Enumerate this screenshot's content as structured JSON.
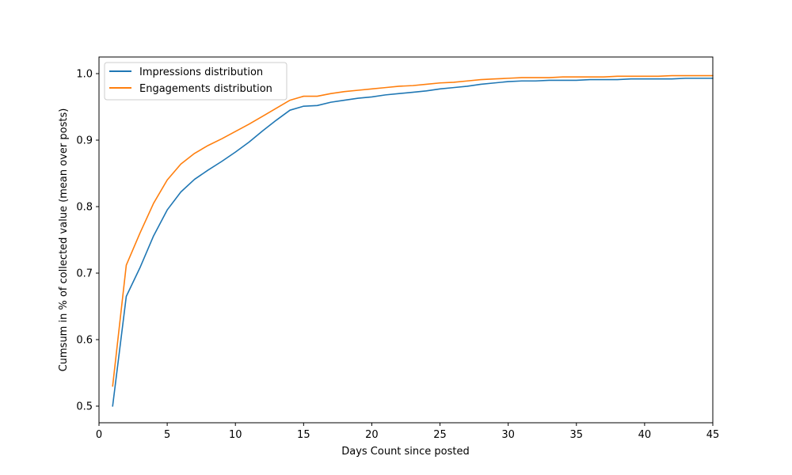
{
  "chart_data": {
    "type": "line",
    "title": "",
    "xlabel": "Days Count since posted",
    "ylabel": "Cumsum in % of collected value (mean over posts)",
    "xlim": [
      0,
      45
    ],
    "ylim": [
      0.475,
      1.025
    ],
    "xticks": [
      0,
      5,
      10,
      15,
      20,
      25,
      30,
      35,
      40,
      45
    ],
    "yticks": [
      0.5,
      0.6,
      0.7,
      0.8,
      0.9,
      1.0
    ],
    "xtick_labels": [
      "0",
      "5",
      "10",
      "15",
      "20",
      "25",
      "30",
      "35",
      "40",
      "45"
    ],
    "ytick_labels": [
      "0.5",
      "0.6",
      "0.7",
      "0.8",
      "0.9",
      "1.0"
    ],
    "grid": false,
    "legend_position": "upper-left",
    "x": [
      1,
      2,
      3,
      4,
      5,
      6,
      7,
      8,
      9,
      10,
      11,
      12,
      13,
      14,
      15,
      16,
      17,
      18,
      19,
      20,
      21,
      22,
      23,
      24,
      25,
      26,
      27,
      28,
      29,
      30,
      31,
      32,
      33,
      34,
      35,
      36,
      37,
      38,
      39,
      40,
      41,
      42,
      43,
      44,
      45
    ],
    "series": [
      {
        "name": "Impressions distribution",
        "color": "#1f77b4",
        "values": [
          0.5,
          0.665,
          0.708,
          0.756,
          0.795,
          0.822,
          0.841,
          0.855,
          0.868,
          0.882,
          0.897,
          0.914,
          0.93,
          0.945,
          0.951,
          0.952,
          0.957,
          0.96,
          0.963,
          0.965,
          0.968,
          0.97,
          0.972,
          0.974,
          0.977,
          0.979,
          0.981,
          0.984,
          0.986,
          0.988,
          0.989,
          0.989,
          0.99,
          0.99,
          0.99,
          0.991,
          0.991,
          0.991,
          0.992,
          0.992,
          0.992,
          0.992,
          0.993,
          0.993,
          0.993
        ]
      },
      {
        "name": "Engagements distribution",
        "color": "#ff7f0e",
        "values": [
          0.53,
          0.712,
          0.76,
          0.805,
          0.84,
          0.864,
          0.88,
          0.892,
          0.902,
          0.913,
          0.924,
          0.936,
          0.948,
          0.96,
          0.966,
          0.966,
          0.97,
          0.973,
          0.975,
          0.977,
          0.979,
          0.981,
          0.982,
          0.984,
          0.986,
          0.987,
          0.989,
          0.991,
          0.992,
          0.993,
          0.994,
          0.994,
          0.994,
          0.995,
          0.995,
          0.995,
          0.995,
          0.996,
          0.996,
          0.996,
          0.996,
          0.997,
          0.997,
          0.997,
          0.997
        ]
      }
    ]
  }
}
